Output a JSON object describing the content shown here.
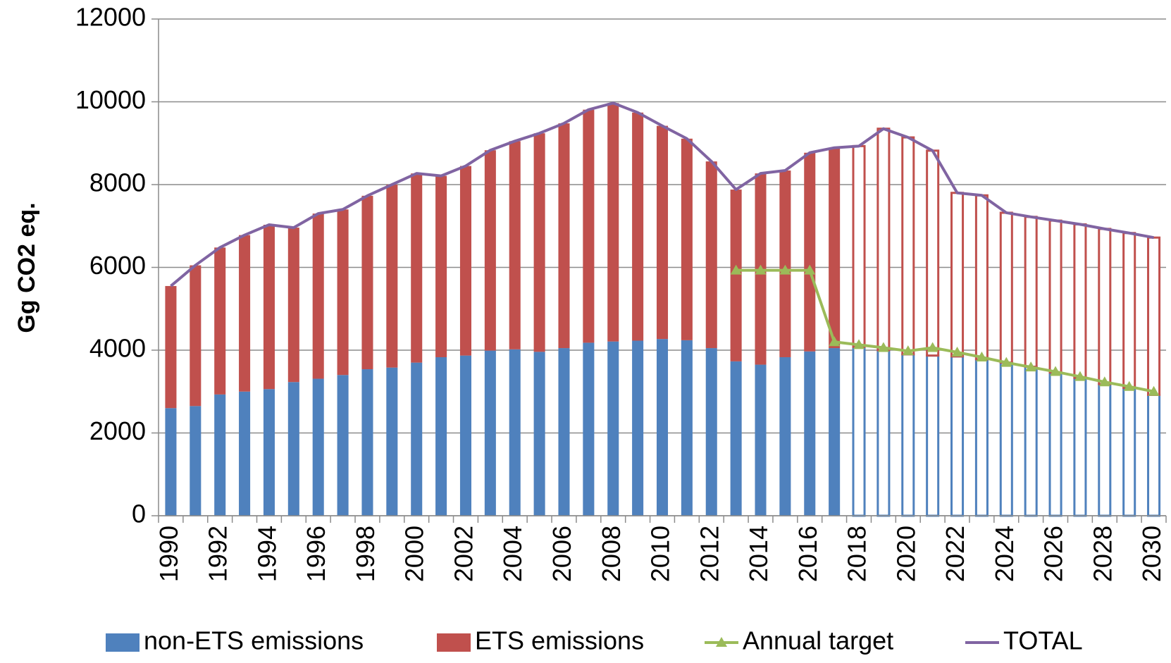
{
  "chart_data": {
    "type": "stacked_bar_line",
    "y_label": "Gg CO2 eq.",
    "categories": [
      "1990",
      null,
      "1992",
      null,
      "1994",
      null,
      "1996",
      null,
      "1998",
      null,
      "2000",
      null,
      "2002",
      null,
      "2004",
      null,
      "2006",
      null,
      "2008",
      null,
      "2010",
      null,
      "2012",
      null,
      "2014",
      null,
      "2016",
      null,
      "2018",
      null,
      "2020",
      null,
      "2022",
      null,
      "2024",
      null,
      "2026",
      null,
      "2028",
      null,
      "2030"
    ],
    "hollow_from": "2018",
    "series": [
      {
        "name": "non-ETS emissions",
        "type": "bar",
        "color": "#4f81bd",
        "values": [
          2600,
          2650,
          2930,
          3000,
          3060,
          3230,
          3310,
          3400,
          3540,
          3580,
          3700,
          3830,
          3870,
          3990,
          4020,
          3960,
          4050,
          4180,
          4210,
          4230,
          4270,
          4240,
          4050,
          3730,
          3650,
          3830,
          3970,
          4050,
          4080,
          4000,
          3900,
          3870,
          3850,
          3780,
          3700,
          3600,
          3460,
          3330,
          3180,
          3090,
          2920
        ]
      },
      {
        "name": "ETS emissions",
        "type": "bar",
        "color": "#c0504d",
        "values": [
          2950,
          3400,
          3550,
          3780,
          3970,
          3730,
          3990,
          4000,
          4190,
          4420,
          4570,
          4380,
          4580,
          4840,
          5030,
          5280,
          5430,
          5630,
          5760,
          5510,
          5150,
          4870,
          4510,
          4150,
          4620,
          4510,
          4800,
          4840,
          4850,
          5350,
          5240,
          4950,
          3950,
          3960,
          3620,
          3620,
          3670,
          3710,
          3750,
          3740,
          3800
        ]
      },
      {
        "name": "Annual target",
        "type": "line",
        "marker": "triangle",
        "color": "#9bbb59",
        "values": [
          null,
          null,
          null,
          null,
          null,
          null,
          null,
          null,
          null,
          null,
          null,
          null,
          null,
          null,
          null,
          null,
          null,
          null,
          null,
          null,
          null,
          null,
          null,
          5930,
          5930,
          5930,
          5930,
          4200,
          4130,
          4060,
          3980,
          4060,
          3950,
          3830,
          3700,
          3590,
          3480,
          3360,
          3230,
          3120,
          3000
        ]
      },
      {
        "name": "TOTAL",
        "type": "line",
        "color": "#8064a2",
        "values": [
          5550,
          6050,
          6480,
          6780,
          7030,
          6960,
          7300,
          7400,
          7730,
          8000,
          8270,
          8210,
          8450,
          8830,
          9050,
          9240,
          9480,
          9810,
          9970,
          9740,
          9420,
          9110,
          8560,
          7880,
          8270,
          8340,
          8770,
          8890,
          8930,
          9350,
          9140,
          8820,
          7800,
          7740,
          7320,
          7220,
          7130,
          7040,
          6930,
          6830,
          6720
        ]
      }
    ],
    "ylim": [
      0,
      12000
    ],
    "yticks": [
      0,
      2000,
      4000,
      6000,
      8000,
      10000,
      12000
    ],
    "grid": true,
    "legend": "bottom"
  }
}
